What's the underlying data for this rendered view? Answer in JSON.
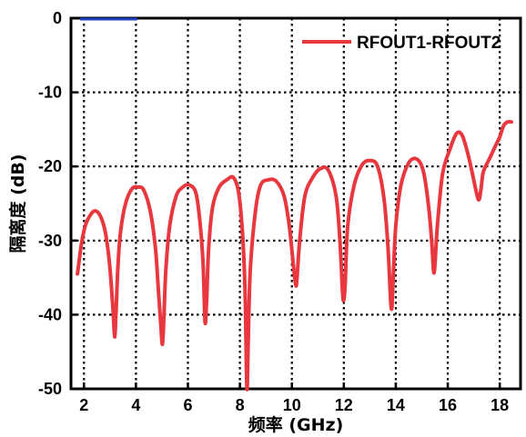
{
  "chart_data": {
    "type": "line",
    "title": "",
    "xlabel": "频率 (GHz)",
    "ylabel": "隔离度 (dB)",
    "xlim": [
      1.5,
      18.8
    ],
    "ylim": [
      -50,
      0
    ],
    "xticks": [
      2,
      4,
      6,
      8,
      10,
      12,
      14,
      16,
      18
    ],
    "xtick_labels": [
      "2",
      "4",
      "6",
      "8",
      "10",
      "12",
      "14",
      "16",
      "18"
    ],
    "yticks": [
      0,
      -10,
      -20,
      -30,
      -40,
      -50
    ],
    "ytick_labels": [
      "0",
      "-10",
      "-20",
      "-30",
      "-40",
      "-50"
    ],
    "grid": true,
    "legend_position": "top-right",
    "colors": {
      "series": "#e8373e",
      "axis": "#000000",
      "grid": "#000000",
      "marker": "#1f3fbf"
    },
    "series": [
      {
        "name": "RFOUT1-RFOUT2",
        "x": [
          1.75,
          1.9,
          2.05,
          2.2,
          2.4,
          2.6,
          2.8,
          2.95,
          3.05,
          3.12,
          3.18,
          3.23,
          3.3,
          3.4,
          3.6,
          3.85,
          4.1,
          4.3,
          4.55,
          4.75,
          4.85,
          4.95,
          5.02,
          5.08,
          5.15,
          5.3,
          5.55,
          5.8,
          6.05,
          6.3,
          6.45,
          6.58,
          6.66,
          6.72,
          6.8,
          6.95,
          7.2,
          7.5,
          7.75,
          7.95,
          8.1,
          8.2,
          8.25,
          8.28,
          8.32,
          8.4,
          8.6,
          8.8,
          9.1,
          9.4,
          9.7,
          9.9,
          10.05,
          10.15,
          10.2,
          10.3,
          10.5,
          10.8,
          11.1,
          11.4,
          11.7,
          11.85,
          11.95,
          12.0,
          12.05,
          12.15,
          12.4,
          12.7,
          13.0,
          13.3,
          13.55,
          13.7,
          13.8,
          13.85,
          13.9,
          14.0,
          14.2,
          14.5,
          14.8,
          15.05,
          15.25,
          15.38,
          15.45,
          15.5,
          15.6,
          15.8,
          16.1,
          16.35,
          16.55,
          16.75,
          16.95,
          17.1,
          17.2,
          17.28,
          17.35,
          17.45,
          17.6,
          17.8,
          18.0,
          18.15,
          18.3,
          18.45
        ],
        "y": [
          -34.5,
          -30.5,
          -28,
          -26.8,
          -26,
          -26.5,
          -28.5,
          -32,
          -36,
          -39.5,
          -43,
          -40,
          -34,
          -29,
          -25,
          -23,
          -22.8,
          -23.2,
          -26,
          -31,
          -36,
          -41,
          -44,
          -40,
          -34,
          -28,
          -24,
          -22.8,
          -22.5,
          -23.5,
          -27,
          -33,
          -41,
          -38,
          -31,
          -25.5,
          -22.8,
          -21.8,
          -21.5,
          -23.5,
          -29,
          -37,
          -47,
          -50,
          -44,
          -34,
          -26,
          -22.5,
          -21.8,
          -22,
          -24,
          -28,
          -33,
          -36,
          -35,
          -30,
          -24,
          -21.5,
          -20.3,
          -20.5,
          -24,
          -30,
          -37,
          -38,
          -36,
          -28,
          -22.5,
          -19.8,
          -19.2,
          -20,
          -24.5,
          -31,
          -38,
          -39,
          -35,
          -28,
          -22.5,
          -19.5,
          -19,
          -20.5,
          -25,
          -30,
          -34,
          -33.5,
          -28,
          -21,
          -17.5,
          -15.5,
          -15.8,
          -18,
          -21,
          -23.5,
          -24.5,
          -23,
          -21,
          -20,
          -19,
          -17.5,
          -16,
          -14.5,
          -14,
          -14
        ]
      }
    ]
  }
}
